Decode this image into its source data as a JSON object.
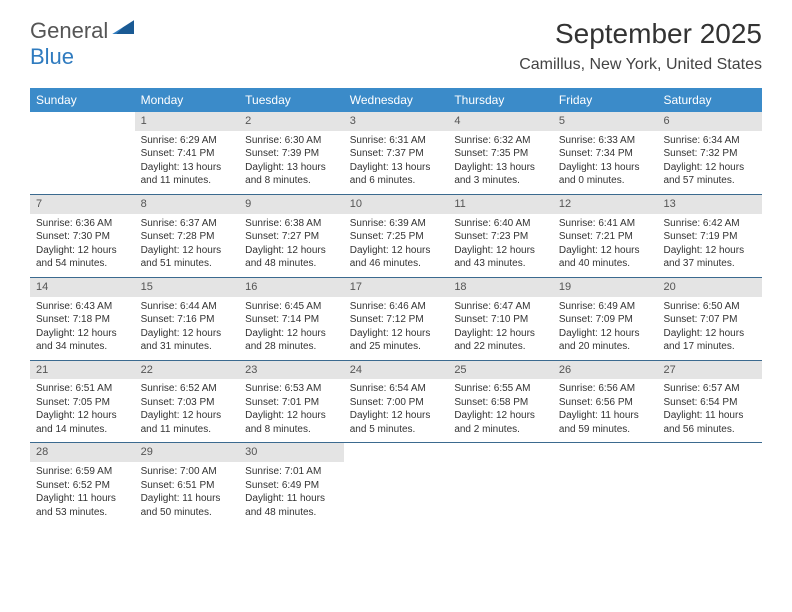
{
  "logo": {
    "word1": "General",
    "word2": "Blue"
  },
  "title": "September 2025",
  "location": "Camillus, New York, United States",
  "colors": {
    "header_bg": "#3b8bc9",
    "header_text": "#ffffff",
    "daynum_bg": "#e4e4e4",
    "row_border": "#3b6a8f",
    "logo_blue": "#2f7bbf",
    "body_text": "#333333"
  },
  "day_headers": [
    "Sunday",
    "Monday",
    "Tuesday",
    "Wednesday",
    "Thursday",
    "Friday",
    "Saturday"
  ],
  "weeks": [
    [
      {
        "n": "",
        "sr": "",
        "ss": "",
        "dl": ""
      },
      {
        "n": "1",
        "sr": "6:29 AM",
        "ss": "7:41 PM",
        "dl": "13 hours and 11 minutes."
      },
      {
        "n": "2",
        "sr": "6:30 AM",
        "ss": "7:39 PM",
        "dl": "13 hours and 8 minutes."
      },
      {
        "n": "3",
        "sr": "6:31 AM",
        "ss": "7:37 PM",
        "dl": "13 hours and 6 minutes."
      },
      {
        "n": "4",
        "sr": "6:32 AM",
        "ss": "7:35 PM",
        "dl": "13 hours and 3 minutes."
      },
      {
        "n": "5",
        "sr": "6:33 AM",
        "ss": "7:34 PM",
        "dl": "13 hours and 0 minutes."
      },
      {
        "n": "6",
        "sr": "6:34 AM",
        "ss": "7:32 PM",
        "dl": "12 hours and 57 minutes."
      }
    ],
    [
      {
        "n": "7",
        "sr": "6:36 AM",
        "ss": "7:30 PM",
        "dl": "12 hours and 54 minutes."
      },
      {
        "n": "8",
        "sr": "6:37 AM",
        "ss": "7:28 PM",
        "dl": "12 hours and 51 minutes."
      },
      {
        "n": "9",
        "sr": "6:38 AM",
        "ss": "7:27 PM",
        "dl": "12 hours and 48 minutes."
      },
      {
        "n": "10",
        "sr": "6:39 AM",
        "ss": "7:25 PM",
        "dl": "12 hours and 46 minutes."
      },
      {
        "n": "11",
        "sr": "6:40 AM",
        "ss": "7:23 PM",
        "dl": "12 hours and 43 minutes."
      },
      {
        "n": "12",
        "sr": "6:41 AM",
        "ss": "7:21 PM",
        "dl": "12 hours and 40 minutes."
      },
      {
        "n": "13",
        "sr": "6:42 AM",
        "ss": "7:19 PM",
        "dl": "12 hours and 37 minutes."
      }
    ],
    [
      {
        "n": "14",
        "sr": "6:43 AM",
        "ss": "7:18 PM",
        "dl": "12 hours and 34 minutes."
      },
      {
        "n": "15",
        "sr": "6:44 AM",
        "ss": "7:16 PM",
        "dl": "12 hours and 31 minutes."
      },
      {
        "n": "16",
        "sr": "6:45 AM",
        "ss": "7:14 PM",
        "dl": "12 hours and 28 minutes."
      },
      {
        "n": "17",
        "sr": "6:46 AM",
        "ss": "7:12 PM",
        "dl": "12 hours and 25 minutes."
      },
      {
        "n": "18",
        "sr": "6:47 AM",
        "ss": "7:10 PM",
        "dl": "12 hours and 22 minutes."
      },
      {
        "n": "19",
        "sr": "6:49 AM",
        "ss": "7:09 PM",
        "dl": "12 hours and 20 minutes."
      },
      {
        "n": "20",
        "sr": "6:50 AM",
        "ss": "7:07 PM",
        "dl": "12 hours and 17 minutes."
      }
    ],
    [
      {
        "n": "21",
        "sr": "6:51 AM",
        "ss": "7:05 PM",
        "dl": "12 hours and 14 minutes."
      },
      {
        "n": "22",
        "sr": "6:52 AM",
        "ss": "7:03 PM",
        "dl": "12 hours and 11 minutes."
      },
      {
        "n": "23",
        "sr": "6:53 AM",
        "ss": "7:01 PM",
        "dl": "12 hours and 8 minutes."
      },
      {
        "n": "24",
        "sr": "6:54 AM",
        "ss": "7:00 PM",
        "dl": "12 hours and 5 minutes."
      },
      {
        "n": "25",
        "sr": "6:55 AM",
        "ss": "6:58 PM",
        "dl": "12 hours and 2 minutes."
      },
      {
        "n": "26",
        "sr": "6:56 AM",
        "ss": "6:56 PM",
        "dl": "11 hours and 59 minutes."
      },
      {
        "n": "27",
        "sr": "6:57 AM",
        "ss": "6:54 PM",
        "dl": "11 hours and 56 minutes."
      }
    ],
    [
      {
        "n": "28",
        "sr": "6:59 AM",
        "ss": "6:52 PM",
        "dl": "11 hours and 53 minutes."
      },
      {
        "n": "29",
        "sr": "7:00 AM",
        "ss": "6:51 PM",
        "dl": "11 hours and 50 minutes."
      },
      {
        "n": "30",
        "sr": "7:01 AM",
        "ss": "6:49 PM",
        "dl": "11 hours and 48 minutes."
      },
      {
        "n": "",
        "sr": "",
        "ss": "",
        "dl": ""
      },
      {
        "n": "",
        "sr": "",
        "ss": "",
        "dl": ""
      },
      {
        "n": "",
        "sr": "",
        "ss": "",
        "dl": ""
      },
      {
        "n": "",
        "sr": "",
        "ss": "",
        "dl": ""
      }
    ]
  ],
  "labels": {
    "sunrise": "Sunrise:",
    "sunset": "Sunset:",
    "daylight": "Daylight:"
  }
}
